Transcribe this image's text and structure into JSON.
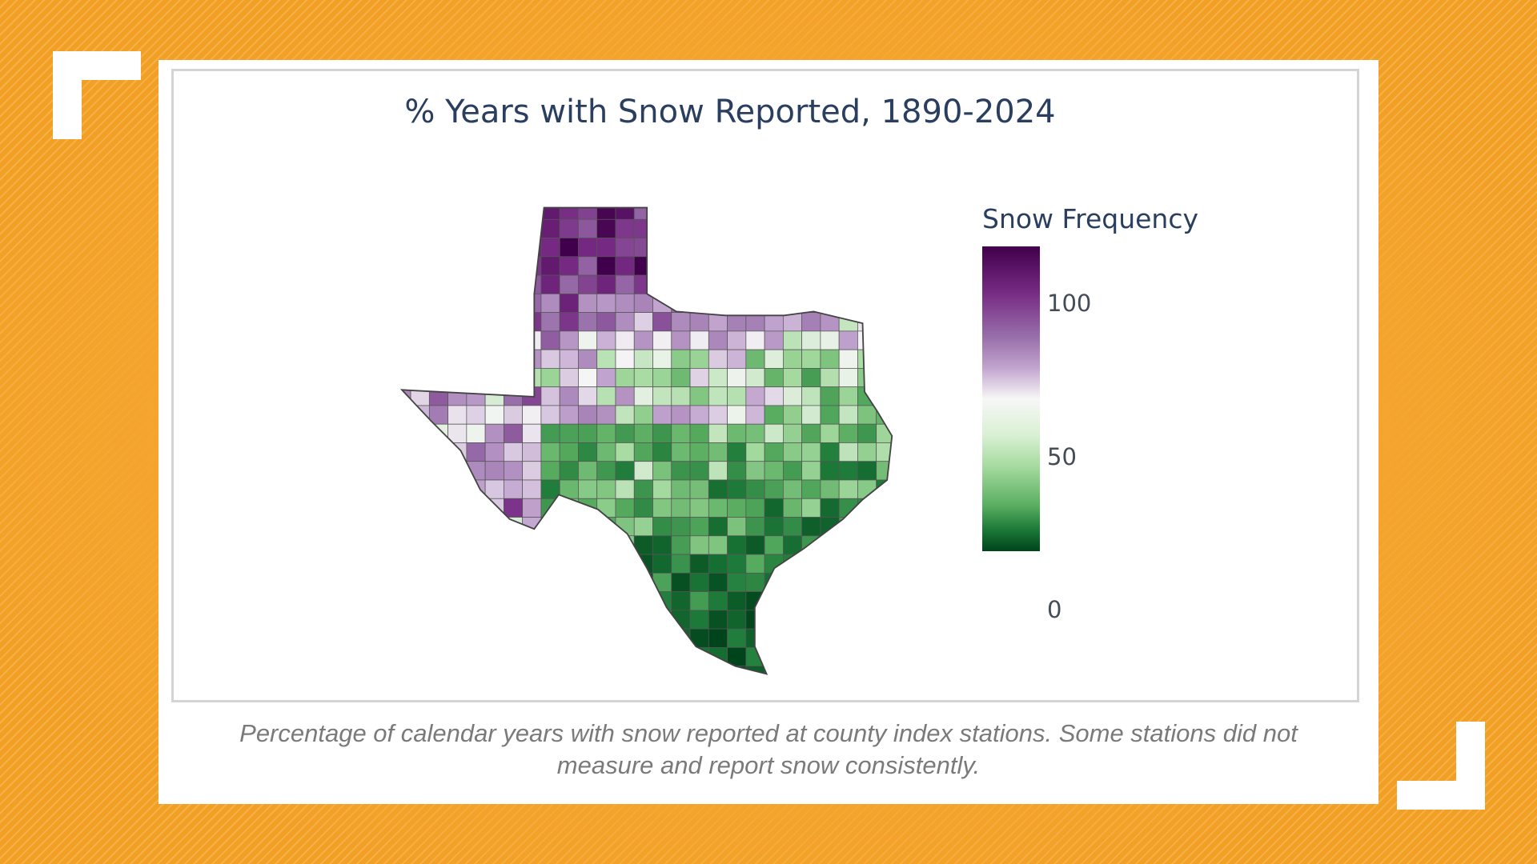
{
  "title": "% Years with Snow Reported, 1890-2024",
  "legend": {
    "title": "Snow Frequency",
    "ticks": [
      "100",
      "50",
      "0"
    ],
    "range": [
      0,
      100
    ],
    "colors": {
      "high": "#40004b",
      "mid": "#f7f7f7",
      "low": "#00441b"
    }
  },
  "caption": {
    "line1": "Percentage of calendar years with snow reported at county index stations.  Some stations did not",
    "line2": "measure and report snow consistently."
  },
  "frame_colors": {
    "background": "#f2a024",
    "card": "#ffffff"
  }
}
